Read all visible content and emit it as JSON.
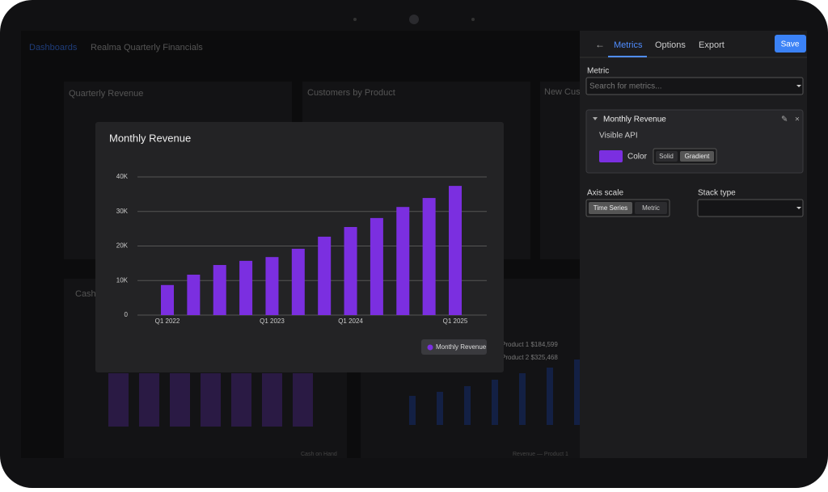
{
  "background": {
    "breadcrumb": [
      "Dashboards",
      "Realma Quarterly Financials"
    ],
    "cards": [
      "Quarterly Revenue",
      "Customers by Product",
      "New Cus",
      "Cash"
    ],
    "legends": [
      "Product 1 $184,599",
      "Product 2 $325,468",
      "Cash on Hand",
      "Revenue — Product 1"
    ]
  },
  "panel": {
    "tabs": [
      "Metrics",
      "Options",
      "Export"
    ],
    "save": "Save",
    "metric_label": "Metric",
    "search_placeholder": "Search for metrics...",
    "card": {
      "title": "Monthly Revenue",
      "subtitle": "Visible API",
      "color_label": "Color",
      "color_options": [
        "Solid",
        "Gradient"
      ]
    },
    "axis_scale": {
      "label": "Axis scale",
      "options": [
        "Time Series",
        "Metric"
      ]
    },
    "stack_type": {
      "label": "Stack type"
    }
  },
  "chart_data": {
    "type": "bar",
    "title": "Monthly Revenue",
    "categories": [
      "Q1 2022",
      null,
      null,
      null,
      "Q1 2023",
      null,
      null,
      "Q1 2024",
      null,
      null,
      null,
      "Q1 2025"
    ],
    "series": [
      {
        "name": "Monthly Revenue",
        "color": "#7b2fe0",
        "values": [
          8700,
          11700,
          14500,
          15700,
          16800,
          19200,
          22700,
          25500,
          28100,
          31300,
          33900,
          37400
        ]
      }
    ],
    "ylim": [
      0,
      40000
    ],
    "yticks": [
      0,
      {
        "value": 10000,
        "label": "10K"
      },
      {
        "value": 20000,
        "label": "20K"
      },
      {
        "value": 30000,
        "label": "30K"
      },
      {
        "value": 40000,
        "label": "40K"
      }
    ],
    "grid": true,
    "legend": "bottom-right"
  }
}
